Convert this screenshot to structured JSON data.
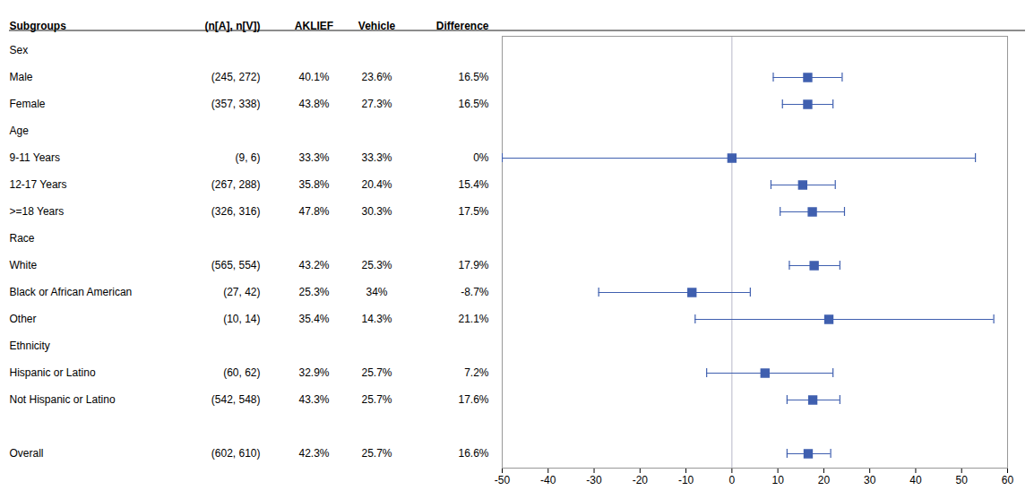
{
  "chart_data": {
    "type": "forest",
    "label_header": "Subgroups",
    "categories": [
      "Sex",
      "Male",
      "Female",
      "Age",
      "9-11 Years",
      "12-17 Years",
      ">=18 Years",
      "Race",
      "White",
      "Black or African American",
      "Other",
      "Ethnicity",
      "Hispanic or Latino",
      "Not Hispanic or Latino",
      null,
      "Overall"
    ],
    "columns": [
      {
        "name": "(n[A], n[V])",
        "values": [
          null,
          "(245, 272)",
          "(357, 338)",
          null,
          "(9, 6)",
          "(267, 288)",
          "(326, 316)",
          null,
          "(565, 554)",
          "(27, 42)",
          "(10, 14)",
          null,
          "(60, 62)",
          "(542, 548)",
          null,
          "(602, 610)"
        ]
      },
      {
        "name": "AKLIEF",
        "values": [
          null,
          "40.1%",
          "43.8%",
          null,
          "33.3%",
          "35.8%",
          "47.8%",
          null,
          "43.2%",
          "25.3%",
          "35.4%",
          null,
          "32.9%",
          "43.3%",
          null,
          "42.3%"
        ]
      },
      {
        "name": "Vehicle",
        "values": [
          null,
          "23.6%",
          "27.3%",
          null,
          "33.3%",
          "20.4%",
          "30.3%",
          null,
          "25.3%",
          "34%",
          "14.3%",
          null,
          "25.7%",
          "25.7%",
          null,
          "25.7%"
        ]
      }
    ],
    "values_name": "Difference",
    "values": [
      null,
      16.5,
      16.5,
      null,
      0.0,
      15.4,
      17.5,
      null,
      17.9,
      -8.7,
      21.1,
      null,
      7.2,
      17.6,
      null,
      16.6
    ],
    "value_labels": [
      null,
      "16.5%",
      "16.5%",
      null,
      "0%",
      "15.4%",
      "17.5%",
      null,
      "17.9%",
      "-8.7%",
      "21.1%",
      null,
      "7.2%",
      "17.6%",
      null,
      "16.6%"
    ],
    "ci_low": [
      null,
      9.0,
      11.0,
      null,
      -50.0,
      8.5,
      10.5,
      null,
      12.5,
      -29.0,
      -8.0,
      null,
      -5.5,
      12.0,
      null,
      12.0
    ],
    "ci_high": [
      null,
      24.0,
      22.0,
      null,
      53.0,
      22.5,
      24.5,
      null,
      23.5,
      4.0,
      57.0,
      null,
      22.0,
      23.5,
      null,
      21.5
    ],
    "color": "#3f5faf",
    "reference_line": {
      "value": 0,
      "color": "#b8b8c8"
    },
    "marker": "square",
    "xlim": [
      -50,
      60
    ],
    "xticks": [
      -50,
      -40,
      -30,
      -20,
      -10,
      0,
      10,
      20,
      30,
      40,
      50,
      60
    ],
    "grid": false
  }
}
